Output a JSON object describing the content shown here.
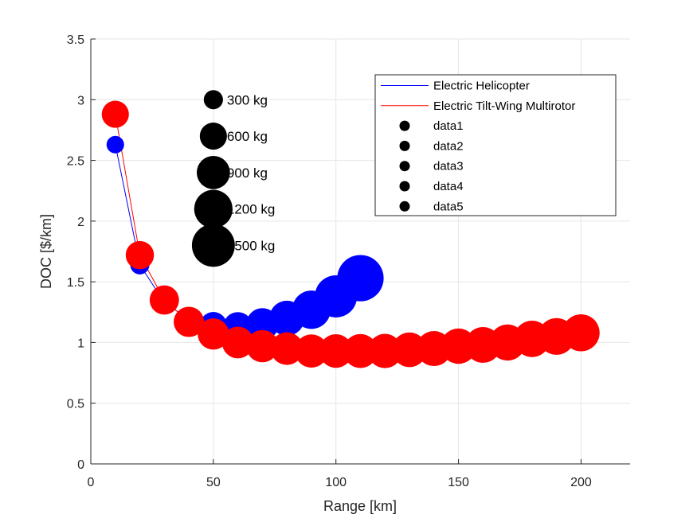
{
  "chart_data": {
    "type": "scatter",
    "xlabel": "Range [km]",
    "ylabel": "DOC [$/km]",
    "xlim": [
      0,
      220
    ],
    "ylim": [
      0,
      3.5
    ],
    "xticks": [
      "0",
      "50",
      "100",
      "150",
      "200"
    ],
    "yticks": [
      "0",
      "0.5",
      "1",
      "1.5",
      "2",
      "2.5",
      "3",
      "3.5"
    ],
    "grid": true,
    "legend_position": "top-right",
    "colors": {
      "helicopter": "#0000ff",
      "tiltwing": "#ff0000",
      "size_key": "#000000"
    },
    "series": [
      {
        "name": "Electric Helicopter",
        "color": "#0000ff",
        "x": [
          10,
          20,
          30,
          40,
          50,
          60,
          70,
          80,
          90,
          100,
          110
        ],
        "y": [
          2.63,
          1.64,
          1.33,
          1.19,
          1.14,
          1.13,
          1.15,
          1.2,
          1.27,
          1.38,
          1.53
        ],
        "mass_kg": [
          250,
          300,
          400,
          500,
          600,
          700,
          850,
          1000,
          1200,
          1450,
          1750
        ]
      },
      {
        "name": "Electric Tilt-Wing Multirotor",
        "color": "#ff0000",
        "x": [
          10,
          20,
          30,
          40,
          50,
          60,
          70,
          80,
          90,
          100,
          110,
          120,
          130,
          140,
          150,
          160,
          170,
          180,
          190,
          200
        ],
        "y": [
          2.88,
          1.72,
          1.35,
          1.17,
          1.07,
          1.0,
          0.97,
          0.95,
          0.93,
          0.93,
          0.93,
          0.93,
          0.94,
          0.95,
          0.97,
          0.98,
          1.0,
          1.03,
          1.05,
          1.08
        ],
        "mass_kg": [
          600,
          650,
          700,
          750,
          800,
          820,
          850,
          870,
          900,
          920,
          940,
          960,
          980,
          1000,
          1020,
          1040,
          1060,
          1080,
          1100,
          1120
        ]
      }
    ],
    "size_key": {
      "x": 50,
      "entries": [
        {
          "label": "300 kg",
          "mass_kg": 300,
          "y": 3.0
        },
        {
          "label": "600 kg",
          "mass_kg": 600,
          "y": 2.7
        },
        {
          "label": "900 kg",
          "mass_kg": 900,
          "y": 2.4
        },
        {
          "label": "1200 kg",
          "mass_kg": 1200,
          "y": 2.1
        },
        {
          "label": "1500 kg",
          "mass_kg": 1500,
          "y": 1.8
        }
      ]
    },
    "legend": [
      {
        "label": "Electric Helicopter",
        "kind": "line",
        "color": "#0000ff"
      },
      {
        "label": "Electric Tilt-Wing Multirotor",
        "kind": "line",
        "color": "#ff0000"
      },
      {
        "label": "data1",
        "kind": "marker",
        "color": "#000000"
      },
      {
        "label": "data2",
        "kind": "marker",
        "color": "#000000"
      },
      {
        "label": "data3",
        "kind": "marker",
        "color": "#000000"
      },
      {
        "label": "data4",
        "kind": "marker",
        "color": "#000000"
      },
      {
        "label": "data5",
        "kind": "marker",
        "color": "#000000"
      }
    ]
  }
}
